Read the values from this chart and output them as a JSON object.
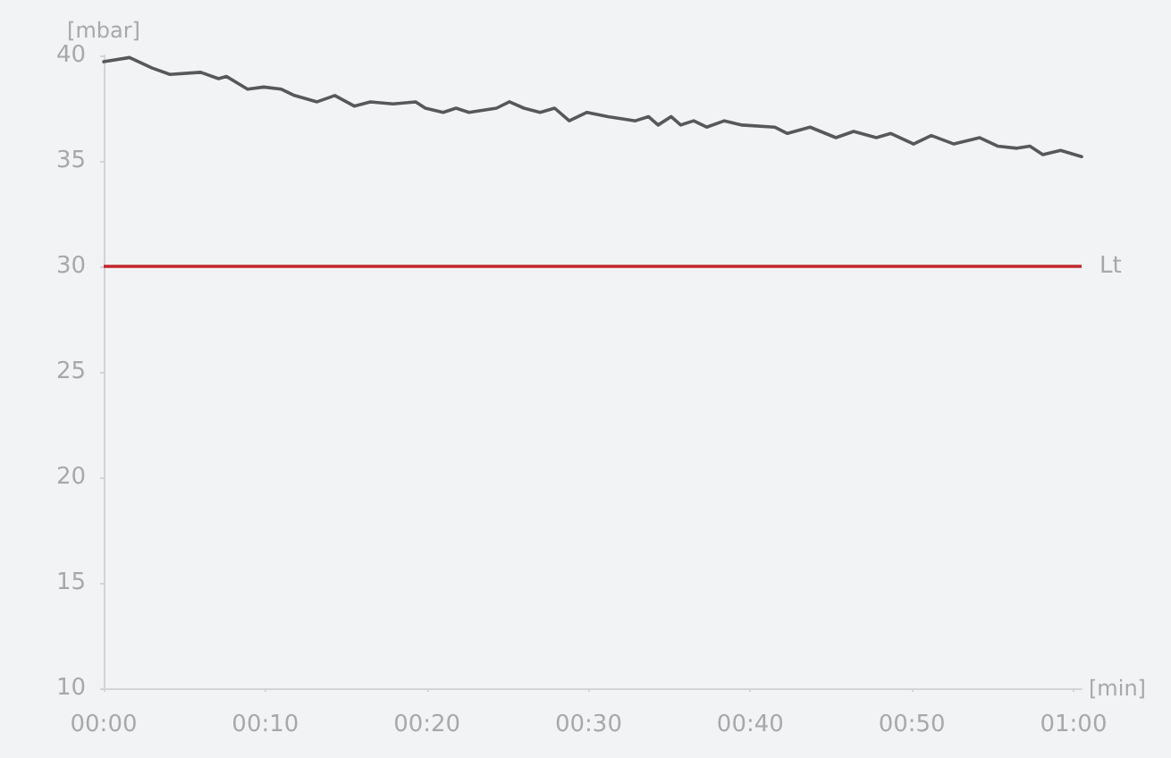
{
  "chart_data": {
    "type": "line",
    "xlabel": "[min]",
    "ylabel": "[mbar]",
    "x": [
      0,
      1.6,
      3.0,
      4.1,
      6.0,
      7.1,
      7.6,
      8.9,
      9.9,
      11.0,
      11.8,
      13.2,
      14.3,
      15.5,
      16.5,
      17.9,
      19.3,
      19.9,
      21.0,
      21.8,
      22.6,
      24.3,
      25.1,
      26.0,
      27.0,
      27.9,
      28.8,
      29.9,
      31.2,
      32.9,
      33.7,
      34.3,
      35.1,
      35.7,
      36.5,
      37.3,
      38.4,
      39.5,
      41.5,
      42.3,
      43.7,
      45.3,
      46.4,
      47.8,
      48.7,
      50.1,
      51.2,
      52.6,
      54.2,
      55.3,
      56.5,
      57.3,
      58.1,
      59.2,
      60.5
    ],
    "series": [
      {
        "color": "#58585a",
        "values": [
          39.7,
          39.9,
          39.4,
          39.1,
          39.2,
          38.9,
          39.0,
          38.4,
          38.5,
          38.4,
          38.1,
          37.8,
          38.1,
          37.6,
          37.8,
          37.7,
          37.8,
          37.5,
          37.3,
          37.5,
          37.3,
          37.5,
          37.8,
          37.5,
          37.3,
          37.5,
          36.9,
          37.3,
          37.1,
          36.9,
          37.1,
          36.7,
          37.1,
          36.7,
          36.9,
          36.6,
          36.9,
          36.7,
          36.6,
          36.3,
          36.6,
          36.1,
          36.4,
          36.1,
          36.3,
          35.8,
          36.2,
          35.8,
          36.1,
          35.7,
          35.6,
          35.7,
          35.3,
          35.5,
          35.2
        ]
      }
    ],
    "xlim": [
      0,
      60.5
    ],
    "xticks": [
      {
        "value": 0,
        "label": "00:00"
      },
      {
        "value": 10,
        "label": "00:10"
      },
      {
        "value": 20,
        "label": "00:20"
      },
      {
        "value": 30,
        "label": "00:30"
      },
      {
        "value": 40,
        "label": "00:40"
      },
      {
        "value": 50,
        "label": "00:50"
      },
      {
        "value": 60,
        "label": "01:00"
      }
    ],
    "ylim": [
      10,
      40
    ],
    "yticks": [
      10,
      15,
      20,
      25,
      30,
      35,
      40
    ],
    "ref_lines": [
      {
        "axis": "y",
        "value": 30,
        "label": "Lt",
        "color": "#c1272d",
        "line_style": "solid"
      }
    ],
    "grid": false,
    "marker": "none",
    "line_style": "solid"
  }
}
